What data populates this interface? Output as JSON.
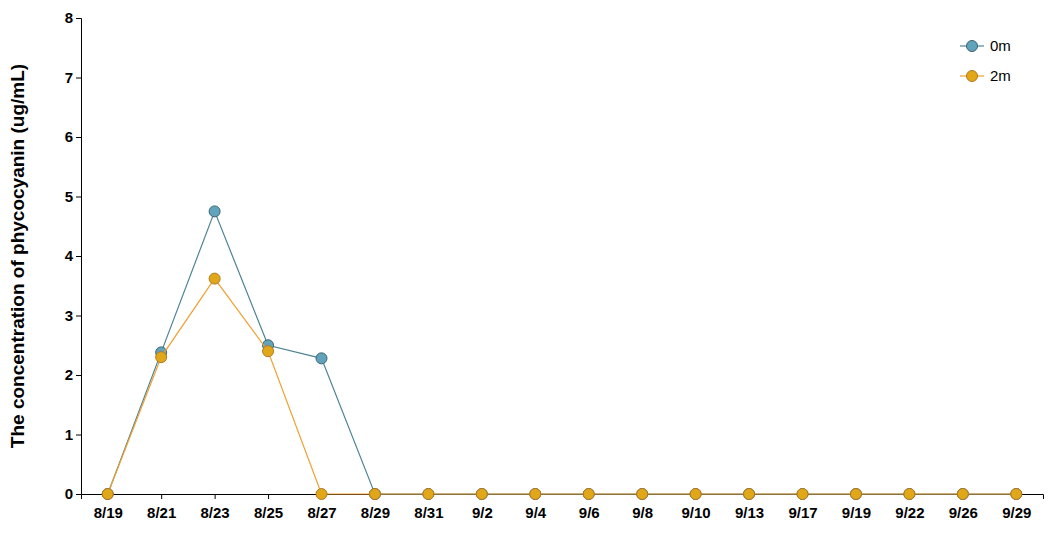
{
  "chart_data": {
    "type": "line",
    "y_label": "The concentration of phycocyanin (ug/mL)",
    "categories": [
      "8/19",
      "8/21",
      "8/23",
      "8/25",
      "8/27",
      "8/29",
      "8/31",
      "9/2",
      "9/4",
      "9/6",
      "9/8",
      "9/10",
      "9/13",
      "9/17",
      "9/19",
      "9/22",
      "9/26",
      "9/29"
    ],
    "series": [
      {
        "name": "0m",
        "color": "#4e8496",
        "marker": "circle",
        "values": [
          0,
          2.38,
          4.75,
          2.5,
          2.28,
          0,
          0,
          0,
          0,
          0,
          0,
          0,
          0,
          0,
          0,
          0,
          0,
          0
        ]
      },
      {
        "name": "2m",
        "color": "#f0a030",
        "marker": "circle",
        "values": [
          0,
          2.3,
          3.62,
          2.4,
          0,
          0,
          0,
          0,
          0,
          0,
          0,
          0,
          0,
          0,
          0,
          0,
          0,
          0
        ]
      }
    ],
    "ylim": [
      0,
      8
    ],
    "yticks": [
      0,
      1,
      2,
      3,
      4,
      5,
      6,
      7,
      8
    ],
    "grid": false,
    "legend": "upper right"
  }
}
